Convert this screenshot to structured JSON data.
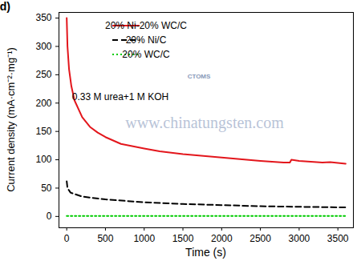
{
  "chart_data": {
    "type": "line",
    "xlabel": "Time (s)",
    "ylabel": "Current density (mA·cm⁻²·mg⁻¹)",
    "annotations": [
      "(d)",
      "0.33 M urea+1 M KOH",
      "www.chinatungsten.com",
      "CTOMS"
    ],
    "xlim": [
      -100,
      3700
    ],
    "xticks": [
      0,
      500,
      1000,
      1500,
      2000,
      2500,
      3000,
      3500
    ],
    "ylim": [
      -20,
      360
    ],
    "yticks": [
      0,
      50,
      100,
      150,
      200,
      250,
      300,
      350
    ],
    "grid": false,
    "legend": "upper center",
    "series": [
      {
        "name": "20% Ni-20% WC/C",
        "color": "#e3161c",
        "line_style": "solid",
        "x": [
          0,
          10,
          30,
          60,
          100,
          200,
          300,
          400,
          500,
          700,
          1000,
          1200,
          1500,
          2000,
          2500,
          2800,
          2880,
          2900,
          3000,
          3300,
          3400,
          3600
        ],
        "values": [
          350,
          300,
          260,
          230,
          205,
          175,
          158,
          148,
          140,
          128,
          120,
          115,
          110,
          104,
          98,
          95,
          95,
          100,
          98,
          95,
          96,
          93
        ]
      },
      {
        "name": "20% Ni/C",
        "color": "#000000",
        "line_style": "dashed",
        "x": [
          0,
          10,
          50,
          200,
          500,
          1000,
          1500,
          2000,
          2500,
          3000,
          3600
        ],
        "values": [
          62,
          50,
          42,
          35,
          30,
          25,
          22,
          20,
          18,
          17,
          16
        ]
      },
      {
        "name": "20% WC/C",
        "color": "#00cc00",
        "line_style": "dotted",
        "x": [
          0,
          3600
        ],
        "values": [
          1,
          1
        ]
      }
    ]
  }
}
